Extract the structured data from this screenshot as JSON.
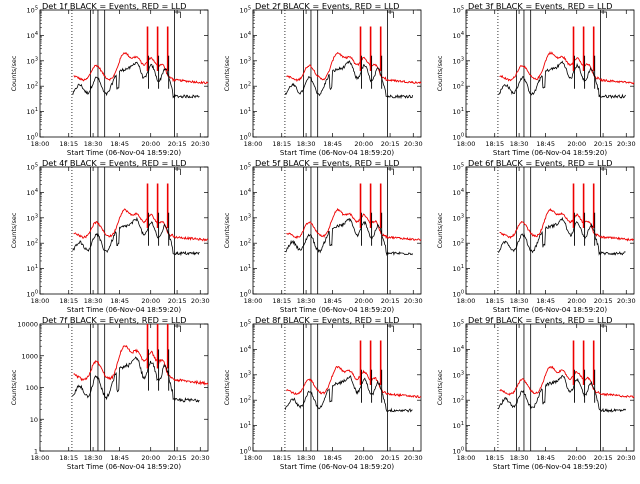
{
  "panel_title_suffix": " BLACK = Events, RED = LLD",
  "colors": {
    "events": "#000000",
    "lld": "#ee0000"
  },
  "chart_data": [
    {
      "type": "line",
      "title": "Det 1f",
      "xlabel": "Start Time (06-Nov-04 18:59:20)",
      "ylabel": "Counts/sec",
      "ylog": true,
      "ylim": [
        1,
        100000
      ],
      "yticklabels": [
        "10^0",
        "10^1",
        "10^2",
        "10^3",
        "10^4",
        "10^5"
      ],
      "xticks": [
        "18:00",
        "18:15",
        "18:30",
        "18:45",
        "20:00",
        "20:15",
        "20:30"
      ],
      "series": [
        {
          "id": "events"
        },
        {
          "id": "lld"
        }
      ]
    },
    {
      "type": "line",
      "title": "Det 2f",
      "xlabel": "Start Time (06-Nov-04 18:59:20)",
      "ylabel": "Counts/sec",
      "ylog": true,
      "ylim": [
        1,
        100000
      ],
      "yticklabels": [
        "10^0",
        "10^1",
        "10^2",
        "10^3",
        "10^4",
        "10^5"
      ],
      "xticks": [
        "18:00",
        "18:15",
        "18:30",
        "18:45",
        "20:00",
        "20:15",
        "20:30"
      ],
      "series": [
        {
          "id": "events"
        },
        {
          "id": "lld"
        }
      ]
    },
    {
      "type": "line",
      "title": "Det 3f",
      "xlabel": "Start Time (06-Nov-04 18:59:20)",
      "ylabel": "Counts/sec",
      "ylog": true,
      "ylim": [
        1,
        100000
      ],
      "yticklabels": [
        "10^0",
        "10^1",
        "10^2",
        "10^3",
        "10^4",
        "10^5"
      ],
      "xticks": [
        "18:00",
        "18:15",
        "18:30",
        "18:45",
        "20:00",
        "20:15",
        "20:30"
      ],
      "series": [
        {
          "id": "events"
        },
        {
          "id": "lld"
        }
      ]
    },
    {
      "type": "line",
      "title": "Det 4f",
      "xlabel": "Start Time (06-Nov-04 18:59:20)",
      "ylabel": "Counts/sec",
      "ylog": true,
      "ylim": [
        1,
        100000
      ],
      "yticklabels": [
        "10^0",
        "10^1",
        "10^2",
        "10^3",
        "10^4",
        "10^5"
      ],
      "xticks": [
        "18:00",
        "18:15",
        "18:30",
        "18:45",
        "20:00",
        "20:15",
        "20:30"
      ],
      "series": [
        {
          "id": "events"
        },
        {
          "id": "lld"
        }
      ]
    },
    {
      "type": "line",
      "title": "Det 5f",
      "xlabel": "Start Time (06-Nov-04 18:59:20)",
      "ylabel": "Counts/sec",
      "ylog": true,
      "ylim": [
        1,
        100000
      ],
      "yticklabels": [
        "10^0",
        "10^1",
        "10^2",
        "10^3",
        "10^4",
        "10^5"
      ],
      "xticks": [
        "18:00",
        "18:15",
        "18:30",
        "18:45",
        "20:00",
        "20:15",
        "20:30"
      ],
      "series": [
        {
          "id": "events"
        },
        {
          "id": "lld"
        }
      ]
    },
    {
      "type": "line",
      "title": "Det 6f",
      "xlabel": "Start Time (06-Nov-04 18:59:20)",
      "ylabel": "Counts/sec",
      "ylog": true,
      "ylim": [
        1,
        100000
      ],
      "yticklabels": [
        "10^0",
        "10^1",
        "10^2",
        "10^3",
        "10^4",
        "10^5"
      ],
      "xticks": [
        "18:00",
        "18:15",
        "18:30",
        "18:45",
        "20:00",
        "20:15",
        "20:30"
      ],
      "series": [
        {
          "id": "events"
        },
        {
          "id": "lld"
        }
      ]
    },
    {
      "type": "line",
      "title": "Det 7f",
      "xlabel": "Start Time (06-Nov-04 18:59:20)",
      "ylabel": "Counts/sec",
      "ylog": true,
      "ylim": [
        1,
        10000
      ],
      "yticklabels": [
        "1",
        "10",
        "100",
        "1000",
        "10000"
      ],
      "xticks": [
        "18:00",
        "18:15",
        "18:30",
        "18:45",
        "20:00",
        "20:15",
        "20:30"
      ],
      "series": [
        {
          "id": "events"
        },
        {
          "id": "lld"
        }
      ]
    },
    {
      "type": "line",
      "title": "Det 8f",
      "xlabel": "Start Time (06-Nov-04 18:59:20)",
      "ylabel": "Counts/sec",
      "ylog": true,
      "ylim": [
        1,
        100000
      ],
      "yticklabels": [
        "10^0",
        "10^1",
        "10^2",
        "10^3",
        "10^4",
        "10^5"
      ],
      "xticks": [
        "18:00",
        "18:15",
        "18:30",
        "18:45",
        "20:00",
        "20:15",
        "20:30"
      ],
      "series": [
        {
          "id": "events"
        },
        {
          "id": "lld"
        }
      ]
    },
    {
      "type": "line",
      "title": "Det 9f",
      "xlabel": "Start Time (06-Nov-04 18:59:20)",
      "ylabel": "Counts/sec",
      "ylog": true,
      "ylim": [
        1,
        100000
      ],
      "yticklabels": [
        "10^0",
        "10^1",
        "10^2",
        "10^3",
        "10^4",
        "10^5"
      ],
      "xticks": [
        "18:00",
        "18:15",
        "18:30",
        "18:45",
        "20:00",
        "20:15",
        "20:30"
      ],
      "series": [
        {
          "id": "events"
        },
        {
          "id": "lld"
        }
      ]
    }
  ]
}
